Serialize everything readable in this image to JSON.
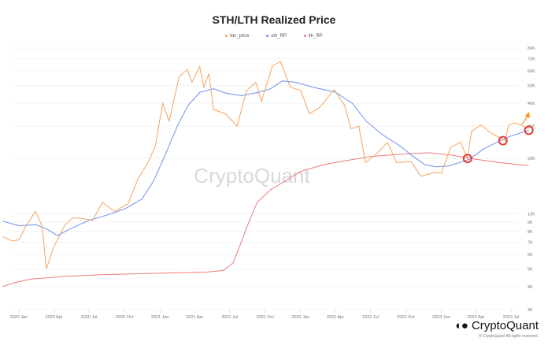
{
  "chart_data": {
    "type": "line",
    "title": "STH/LTH Realized Price",
    "watermark": "CryptoQuant",
    "copyright": "© CryptoQuant All rights reserved.",
    "y_scale": "log",
    "ylim": [
      3000,
      80000
    ],
    "grid": true,
    "legend": "top",
    "y_ticks": [
      {
        "v": 80000,
        "l": "80K"
      },
      {
        "v": 70000,
        "l": "70K"
      },
      {
        "v": 60000,
        "l": "60K"
      },
      {
        "v": 50000,
        "l": "50K"
      },
      {
        "v": 40000,
        "l": "40K"
      },
      {
        "v": 30000,
        "l": "30K"
      },
      {
        "v": 20000,
        "l": "20K"
      },
      {
        "v": 10000,
        "l": "10K"
      },
      {
        "v": 9000,
        "l": "9K"
      },
      {
        "v": 8000,
        "l": "8K"
      },
      {
        "v": 7000,
        "l": "7K"
      },
      {
        "v": 6000,
        "l": "6K"
      },
      {
        "v": 5000,
        "l": "5K"
      },
      {
        "v": 4000,
        "l": "4K"
      },
      {
        "v": 3000,
        "l": "3K"
      }
    ],
    "x_ticks": [
      {
        "d": "2020-01-01",
        "l": "2020 Jan"
      },
      {
        "d": "2020-04-01",
        "l": "2020 Apr"
      },
      {
        "d": "2020-07-01",
        "l": "2020 Jul"
      },
      {
        "d": "2020-10-01",
        "l": "2020 Oct"
      },
      {
        "d": "2021-01-01",
        "l": "2021 Jan"
      },
      {
        "d": "2021-04-01",
        "l": "2021 Apr"
      },
      {
        "d": "2021-07-01",
        "l": "2021 Jul"
      },
      {
        "d": "2021-10-01",
        "l": "2021 Oct"
      },
      {
        "d": "2022-01-01",
        "l": "2022 Jan"
      },
      {
        "d": "2022-04-01",
        "l": "2022 Apr"
      },
      {
        "d": "2022-07-01",
        "l": "2022 Jul"
      },
      {
        "d": "2022-10-01",
        "l": "2022 Oct"
      },
      {
        "d": "2023-01-01",
        "l": "2023 Jan"
      },
      {
        "d": "2023-04-01",
        "l": "2023 Apr"
      },
      {
        "d": "2023-07-01",
        "l": "2023 Jul"
      }
    ],
    "series": [
      {
        "name": "btc_price",
        "color": "#f7a35c",
        "points": [
          [
            "2019-11-20",
            7500
          ],
          [
            "2019-12-15",
            7100
          ],
          [
            "2020-01-01",
            7200
          ],
          [
            "2020-01-20",
            8600
          ],
          [
            "2020-02-13",
            10300
          ],
          [
            "2020-03-01",
            8600
          ],
          [
            "2020-03-12",
            5000
          ],
          [
            "2020-04-01",
            6600
          ],
          [
            "2020-04-30",
            8700
          ],
          [
            "2020-05-20",
            9500
          ],
          [
            "2020-06-15",
            9400
          ],
          [
            "2020-07-10",
            9200
          ],
          [
            "2020-08-05",
            11500
          ],
          [
            "2020-09-05",
            10300
          ],
          [
            "2020-10-10",
            11300
          ],
          [
            "2020-11-05",
            15500
          ],
          [
            "2020-12-01",
            19000
          ],
          [
            "2020-12-20",
            23500
          ],
          [
            "2021-01-08",
            40000
          ],
          [
            "2021-01-25",
            32000
          ],
          [
            "2021-02-20",
            56000
          ],
          [
            "2021-03-13",
            61000
          ],
          [
            "2021-03-25",
            52000
          ],
          [
            "2021-04-14",
            63500
          ],
          [
            "2021-04-25",
            49000
          ],
          [
            "2021-05-08",
            58000
          ],
          [
            "2021-05-20",
            37000
          ],
          [
            "2021-06-20",
            35000
          ],
          [
            "2021-07-20",
            30000
          ],
          [
            "2021-08-14",
            47000
          ],
          [
            "2021-09-07",
            52000
          ],
          [
            "2021-09-21",
            41000
          ],
          [
            "2021-10-20",
            64000
          ],
          [
            "2021-11-10",
            67500
          ],
          [
            "2021-12-05",
            49000
          ],
          [
            "2022-01-01",
            47000
          ],
          [
            "2022-01-24",
            35000
          ],
          [
            "2022-02-20",
            38000
          ],
          [
            "2022-03-29",
            47500
          ],
          [
            "2022-04-25",
            39000
          ],
          [
            "2022-05-12",
            29000
          ],
          [
            "2022-06-01",
            30000
          ],
          [
            "2022-06-18",
            19000
          ],
          [
            "2022-07-15",
            21000
          ],
          [
            "2022-08-14",
            24500
          ],
          [
            "2022-09-07",
            19000
          ],
          [
            "2022-10-15",
            19200
          ],
          [
            "2022-11-09",
            16000
          ],
          [
            "2022-12-15",
            16800
          ],
          [
            "2023-01-01",
            16600
          ],
          [
            "2023-01-25",
            23000
          ],
          [
            "2023-02-20",
            24500
          ],
          [
            "2023-03-10",
            20000
          ],
          [
            "2023-03-20",
            28000
          ],
          [
            "2023-04-14",
            30500
          ],
          [
            "2023-05-10",
            27500
          ],
          [
            "2023-06-15",
            25000
          ],
          [
            "2023-06-25",
            30500
          ],
          [
            "2023-07-13",
            31300
          ],
          [
            "2023-08-10",
            29400
          ],
          [
            "2023-08-16",
            29000
          ]
        ]
      },
      {
        "name": "sth_RP",
        "color": "#6f8ff0",
        "points": [
          [
            "2019-11-20",
            9100
          ],
          [
            "2020-01-01",
            8600
          ],
          [
            "2020-02-15",
            8700
          ],
          [
            "2020-03-15",
            8200
          ],
          [
            "2020-04-10",
            7600
          ],
          [
            "2020-05-15",
            8300
          ],
          [
            "2020-07-01",
            9200
          ],
          [
            "2020-08-15",
            9800
          ],
          [
            "2020-10-01",
            10600
          ],
          [
            "2020-11-15",
            12000
          ],
          [
            "2020-12-15",
            15000
          ],
          [
            "2021-01-15",
            21000
          ],
          [
            "2021-02-15",
            30000
          ],
          [
            "2021-03-15",
            39000
          ],
          [
            "2021-04-15",
            46000
          ],
          [
            "2021-05-20",
            48000
          ],
          [
            "2021-06-20",
            45500
          ],
          [
            "2021-08-01",
            44000
          ],
          [
            "2021-09-15",
            46000
          ],
          [
            "2021-10-15",
            48000
          ],
          [
            "2021-11-15",
            53000
          ],
          [
            "2021-12-20",
            52000
          ],
          [
            "2022-02-01",
            49000
          ],
          [
            "2022-04-01",
            46000
          ],
          [
            "2022-05-15",
            40000
          ],
          [
            "2022-06-20",
            32000
          ],
          [
            "2022-08-01",
            27000
          ],
          [
            "2022-09-15",
            23500
          ],
          [
            "2022-10-20",
            20500
          ],
          [
            "2022-11-20",
            18500
          ],
          [
            "2022-12-20",
            18000
          ],
          [
            "2023-01-20",
            18200
          ],
          [
            "2023-03-15",
            19800
          ],
          [
            "2023-04-20",
            22500
          ],
          [
            "2023-05-25",
            24500
          ],
          [
            "2023-07-01",
            26500
          ],
          [
            "2023-08-16",
            28500
          ]
        ]
      },
      {
        "name": "lth_RP",
        "color": "#f07a7a",
        "points": [
          [
            "2019-11-20",
            4000
          ],
          [
            "2019-12-20",
            4200
          ],
          [
            "2020-02-01",
            4400
          ],
          [
            "2020-05-01",
            4550
          ],
          [
            "2020-08-01",
            4650
          ],
          [
            "2020-11-01",
            4700
          ],
          [
            "2021-02-01",
            4750
          ],
          [
            "2021-05-01",
            4800
          ],
          [
            "2021-06-15",
            4900
          ],
          [
            "2021-07-10",
            5400
          ],
          [
            "2021-07-25",
            6500
          ],
          [
            "2021-08-15",
            8500
          ],
          [
            "2021-09-10",
            11500
          ],
          [
            "2021-10-15",
            13500
          ],
          [
            "2021-11-20",
            15000
          ],
          [
            "2022-01-01",
            17000
          ],
          [
            "2022-03-01",
            18500
          ],
          [
            "2022-05-01",
            19500
          ],
          [
            "2022-07-01",
            20500
          ],
          [
            "2022-10-01",
            21200
          ],
          [
            "2022-12-01",
            21500
          ],
          [
            "2023-02-01",
            20800
          ],
          [
            "2023-04-01",
            19800
          ],
          [
            "2023-06-01",
            19000
          ],
          [
            "2023-08-16",
            18300
          ]
        ]
      }
    ],
    "annotations": {
      "circles": [
        [
          "2023-03-10",
          20000
        ],
        [
          "2023-06-10",
          25000
        ],
        [
          "2023-08-16",
          28500
        ]
      ],
      "arrow_color": "#f7931a",
      "circle_color": "#e53935"
    }
  }
}
